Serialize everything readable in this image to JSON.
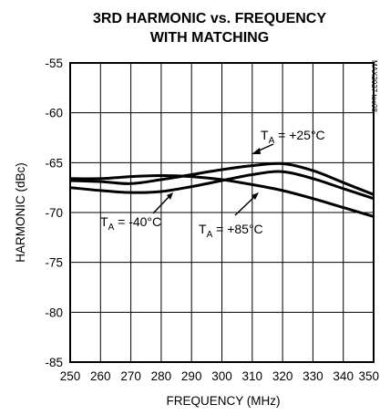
{
  "chart_data": {
    "type": "line",
    "title_line1": "3RD HARMONIC vs. FREQUENCY",
    "title_line2": "WITH MATCHING",
    "xlabel": "FREQUENCY (MHz)",
    "ylabel": "HARMONIC (dBc)",
    "xlim": [
      250,
      350
    ],
    "ylim": [
      -85,
      -55
    ],
    "grid": true,
    "x_ticks": [
      "250",
      "260",
      "270",
      "280",
      "290",
      "300",
      "310",
      "320",
      "330",
      "340",
      "350"
    ],
    "y_ticks": [
      "-55",
      "-60",
      "-65",
      "-70",
      "-75",
      "-80",
      "-85"
    ],
    "side_code": "MAX2027 toc08",
    "series": [
      {
        "name": "TA = +25°C",
        "x": [
          250,
          260,
          270,
          280,
          290,
          300,
          310,
          320,
          330,
          340,
          350
        ],
        "values": [
          -66.8,
          -66.9,
          -67.1,
          -66.7,
          -66.2,
          -65.7,
          -65.3,
          -65.1,
          -65.8,
          -67.0,
          -68.2
        ]
      },
      {
        "name": "TA = -40°C",
        "x": [
          250,
          260,
          270,
          280,
          290,
          300,
          310,
          320,
          330,
          340,
          350
        ],
        "values": [
          -66.6,
          -66.6,
          -66.4,
          -66.3,
          -66.4,
          -66.7,
          -67.2,
          -67.8,
          -68.6,
          -69.5,
          -70.4
        ]
      },
      {
        "name": "TA = +85°C",
        "x": [
          250,
          260,
          270,
          280,
          290,
          300,
          310,
          320,
          330,
          340,
          350
        ],
        "values": [
          -67.5,
          -67.8,
          -68.0,
          -67.9,
          -67.4,
          -66.8,
          -66.2,
          -65.9,
          -66.6,
          -67.6,
          -68.6
        ]
      }
    ],
    "annotations": [
      {
        "main": "T",
        "sub": "A",
        "rest": " = +25°C"
      },
      {
        "main": "T",
        "sub": "A",
        "rest": " = -40°C"
      },
      {
        "main": "T",
        "sub": "A",
        "rest": " = +85°C"
      }
    ]
  }
}
